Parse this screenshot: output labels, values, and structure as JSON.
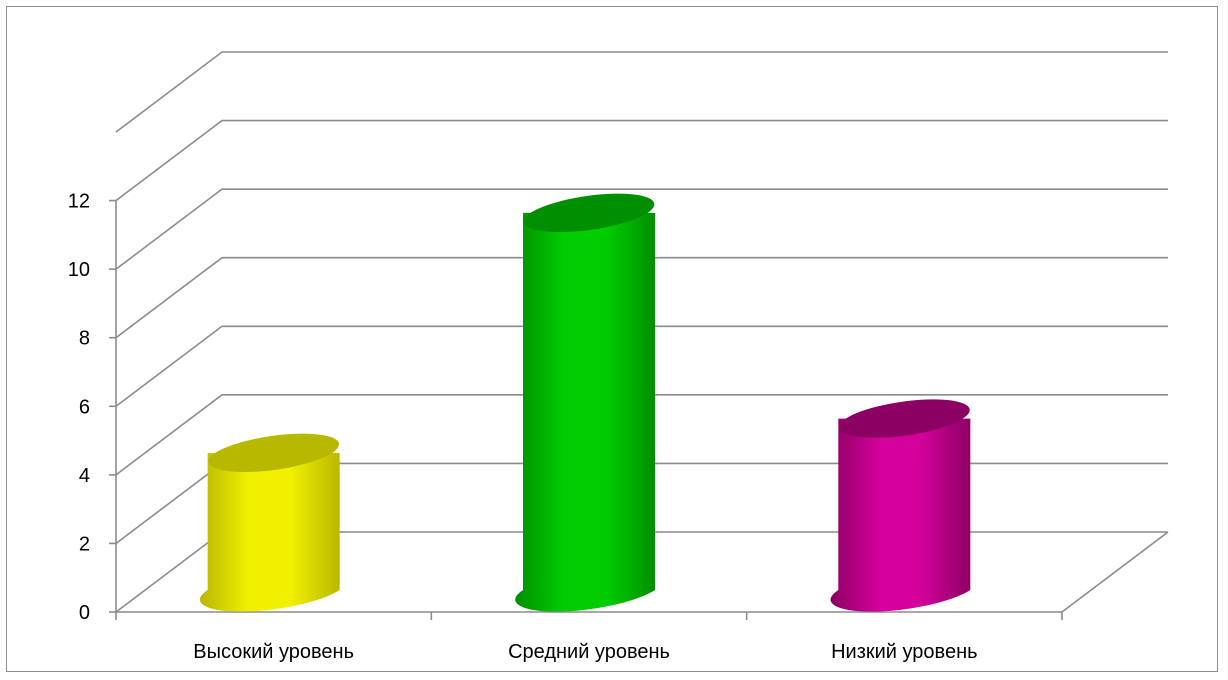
{
  "chart_data": {
    "type": "bar",
    "style": "3d-cylinder",
    "title": "",
    "xlabel": "",
    "ylabel": "",
    "categories": [
      "Высокий уровень",
      "Средний уровень",
      "Низкий уровень"
    ],
    "values": [
      4,
      11,
      5
    ],
    "ylim": [
      0,
      14
    ],
    "yticks": [
      0,
      2,
      4,
      6,
      8,
      10,
      12
    ],
    "grid": true,
    "legend": "none",
    "colors": {
      "bars": [
        "#f0f000",
        "#00cc00",
        "#d4009c"
      ],
      "bar_dark": [
        "#b8b800",
        "#008f00",
        "#8c0064"
      ],
      "grid": "#8c8c8c"
    }
  }
}
